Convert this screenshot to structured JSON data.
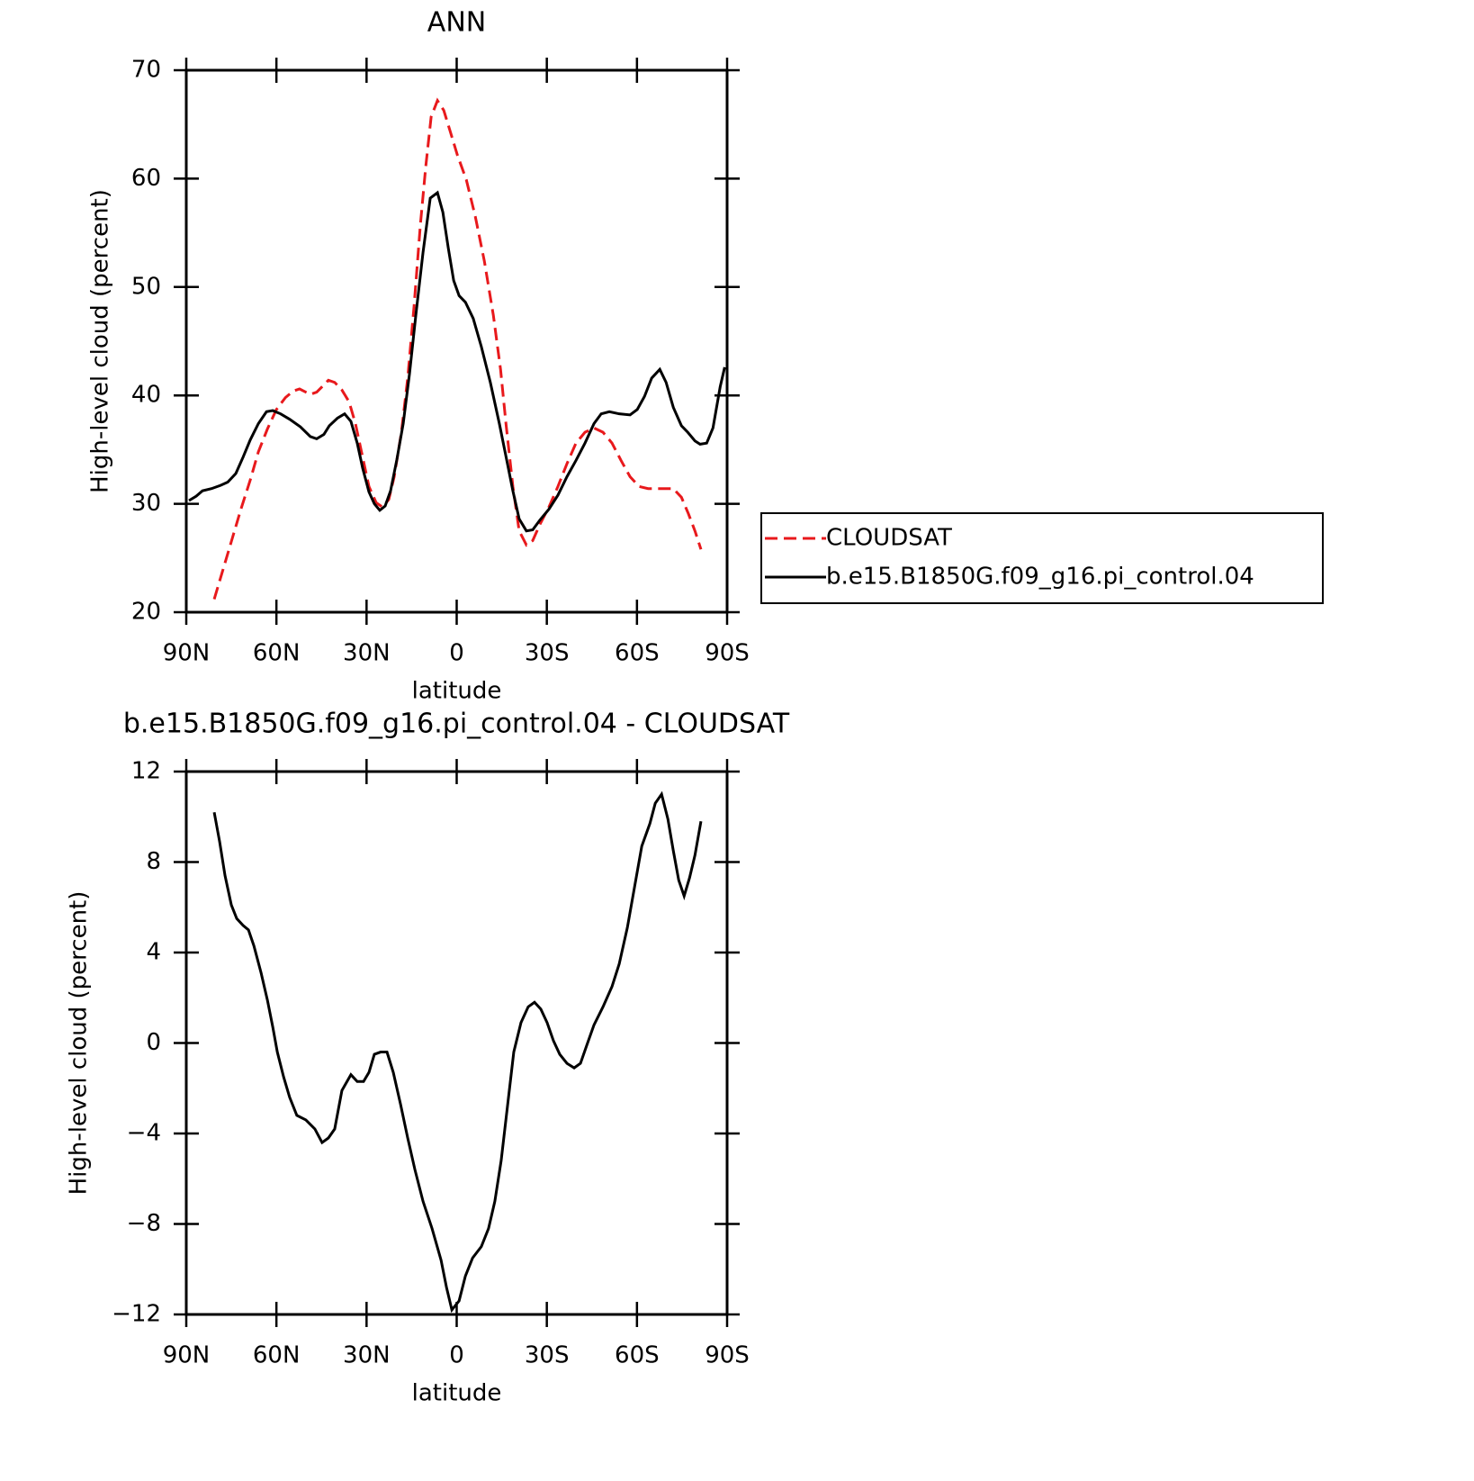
{
  "chart_data": [
    {
      "type": "line",
      "title": "ANN",
      "x_label": "latitude",
      "y_label": "High-level cloud (percent)",
      "xlim": [
        90,
        -90
      ],
      "xticks": [
        {
          "value": 90,
          "label": "90N"
        },
        {
          "value": 60,
          "label": "60N"
        },
        {
          "value": 30,
          "label": "30N"
        },
        0,
        {
          "value": -30,
          "label": "30S"
        },
        {
          "value": -60,
          "label": "60S"
        },
        {
          "value": -90,
          "label": "90S"
        }
      ],
      "ylim": [
        20,
        70
      ],
      "yticks": [
        20,
        30,
        40,
        50,
        60,
        70
      ],
      "legend": "right",
      "series": [
        {
          "name": "CLOUDSAT",
          "color": "#e8191c",
          "dashed": true,
          "x": [
            80.7,
            77.7,
            74.7,
            71.7,
            68.7,
            66.0,
            63.0,
            60.0,
            57.0,
            54.4,
            52.3,
            50.2,
            48.7,
            46.6,
            44.8,
            42.7,
            40.6,
            38.2,
            35.8,
            33.7,
            31.3,
            29.2,
            26.8,
            24.7,
            22.6,
            20.8,
            18.4,
            16.3,
            14.2,
            12.1,
            10.3,
            8.5,
            6.4,
            4.3,
            2.2,
            -0.2,
            -3.2,
            -6.2,
            -9.2,
            -12.2,
            -14.6,
            -16.4,
            -18.7,
            -20.8,
            -23.2,
            -25.3,
            -27.7,
            -30.7,
            -33.7,
            -36.7,
            -39.7,
            -42.7,
            -45.7,
            -48.7,
            -51.7,
            -54.7,
            -57.7,
            -60.7,
            -63.7,
            -68.2,
            -72.1,
            -74.8,
            -77.1,
            -79.3,
            -81.3
          ],
          "values": [
            21.2,
            24.0,
            26.8,
            29.6,
            32.2,
            34.8,
            36.9,
            38.7,
            39.8,
            40.4,
            40.6,
            40.3,
            40.1,
            40.3,
            40.8,
            41.4,
            41.2,
            40.5,
            39.4,
            37.4,
            34.3,
            31.6,
            30.1,
            29.7,
            30.4,
            32.5,
            36.6,
            41.6,
            48.2,
            55.7,
            61.1,
            65.7,
            67.2,
            66.3,
            64.4,
            62.2,
            59.9,
            56.5,
            52.4,
            47.4,
            42.4,
            37.4,
            31.6,
            27.5,
            26.2,
            26.6,
            28.1,
            29.7,
            31.6,
            33.7,
            35.6,
            36.6,
            37.0,
            36.6,
            35.6,
            34.0,
            32.5,
            31.6,
            31.4,
            31.4,
            31.4,
            30.6,
            29.1,
            27.5,
            25.8
          ]
        },
        {
          "name": "b.e15.B1850G.f09_g16.pi_control.04",
          "color": "#000000",
          "dashed": false,
          "x": [
            89.1,
            86.7,
            84.6,
            81.6,
            78.6,
            76.2,
            73.5,
            71.1,
            68.7,
            66.0,
            63.3,
            61.2,
            58.6,
            55.6,
            52.0,
            48.7,
            46.6,
            44.2,
            42.4,
            39.7,
            37.3,
            35.2,
            33.1,
            31.3,
            29.2,
            27.4,
            25.6,
            23.8,
            22.0,
            19.9,
            17.8,
            15.7,
            13.6,
            11.2,
            8.8,
            6.4,
            4.6,
            2.8,
            1.0,
            -0.8,
            -2.9,
            -5.5,
            -8.2,
            -11.2,
            -14.2,
            -16.6,
            -18.7,
            -20.8,
            -23.2,
            -25.3,
            -27.7,
            -30.7,
            -33.7,
            -36.7,
            -39.7,
            -42.7,
            -45.7,
            -48.1,
            -50.8,
            -54.1,
            -57.7,
            -60.1,
            -62.5,
            -64.9,
            -67.6,
            -69.7,
            -72.1,
            -74.8,
            -76.9,
            -79.3,
            -81.0,
            -83.2,
            -85.3,
            -87.7,
            -89.2
          ],
          "values": [
            30.3,
            30.7,
            31.2,
            31.4,
            31.7,
            32.0,
            32.8,
            34.3,
            35.9,
            37.4,
            38.5,
            38.6,
            38.3,
            37.8,
            37.1,
            36.2,
            36.0,
            36.4,
            37.2,
            37.9,
            38.3,
            37.6,
            35.6,
            33.3,
            31.1,
            30.0,
            29.4,
            29.8,
            31.2,
            34.1,
            37.4,
            42.0,
            47.4,
            53.2,
            58.2,
            58.7,
            56.9,
            53.6,
            50.6,
            49.2,
            48.6,
            47.1,
            44.5,
            41.2,
            37.4,
            34.1,
            31.2,
            28.6,
            27.5,
            27.6,
            28.5,
            29.5,
            30.8,
            32.5,
            34.0,
            35.6,
            37.4,
            38.3,
            38.5,
            38.3,
            38.2,
            38.7,
            39.9,
            41.6,
            42.4,
            41.2,
            38.9,
            37.2,
            36.6,
            35.8,
            35.5,
            35.6,
            37.0,
            40.8,
            42.6
          ]
        }
      ]
    },
    {
      "type": "line",
      "title": "b.e15.B1850G.f09_g16.pi_control.04 - CLOUDSAT",
      "x_label": "latitude",
      "y_label": "High-level cloud (percent)",
      "xlim": [
        90,
        -90
      ],
      "xticks": [
        {
          "value": 90,
          "label": "90N"
        },
        {
          "value": 60,
          "label": "60N"
        },
        {
          "value": 30,
          "label": "30N"
        },
        0,
        {
          "value": -30,
          "label": "30S"
        },
        {
          "value": -60,
          "label": "60S"
        },
        {
          "value": -90,
          "label": "90S"
        }
      ],
      "ylim": [
        -12,
        12
      ],
      "yticks": [
        {
          "value": -12,
          "label": "−12"
        },
        {
          "value": -8,
          "label": "−8"
        },
        {
          "value": -4,
          "label": "−4"
        },
        0,
        4,
        8,
        12
      ],
      "series": [
        {
          "color": "#000000",
          "dashed": false,
          "x": [
            80.7,
            78.9,
            77.1,
            75.0,
            73.2,
            71.1,
            69.3,
            67.5,
            65.1,
            63.0,
            61.2,
            59.7,
            57.6,
            55.6,
            53.2,
            50.2,
            47.2,
            44.8,
            42.7,
            40.6,
            38.2,
            35.2,
            33.1,
            31.0,
            29.2,
            27.4,
            25.3,
            23.2,
            21.1,
            18.7,
            16.3,
            13.9,
            11.2,
            8.2,
            5.2,
            3.4,
            1.6,
            -0.8,
            -2.9,
            -5.3,
            -8.2,
            -10.6,
            -12.7,
            -14.8,
            -16.9,
            -19.0,
            -21.4,
            -23.8,
            -25.9,
            -28.0,
            -30.1,
            -32.2,
            -34.3,
            -36.7,
            -39.1,
            -41.2,
            -43.3,
            -45.7,
            -48.7,
            -51.7,
            -54.1,
            -56.8,
            -59.2,
            -61.6,
            -64.3,
            -66.1,
            -68.2,
            -70.3,
            -72.1,
            -73.9,
            -75.7,
            -77.5,
            -79.3,
            -81.3
          ],
          "values": [
            10.2,
            8.9,
            7.4,
            6.1,
            5.5,
            5.2,
            5.0,
            4.3,
            3.1,
            1.9,
            0.7,
            -0.4,
            -1.5,
            -2.4,
            -3.2,
            -3.4,
            -3.8,
            -4.4,
            -4.2,
            -3.8,
            -2.1,
            -1.4,
            -1.7,
            -1.7,
            -1.3,
            -0.5,
            -0.4,
            -0.4,
            -1.3,
            -2.7,
            -4.2,
            -5.6,
            -7.0,
            -8.2,
            -9.6,
            -10.8,
            -11.8,
            -11.4,
            -10.3,
            -9.5,
            -9.0,
            -8.2,
            -7.0,
            -5.2,
            -2.8,
            -0.4,
            0.9,
            1.6,
            1.8,
            1.5,
            0.9,
            0.1,
            -0.5,
            -0.9,
            -1.1,
            -0.9,
            -0.1,
            0.8,
            1.6,
            2.5,
            3.5,
            5.1,
            6.9,
            8.7,
            9.7,
            10.6,
            11.0,
            9.9,
            8.5,
            7.2,
            6.5,
            7.3,
            8.3,
            9.8
          ]
        }
      ]
    }
  ]
}
